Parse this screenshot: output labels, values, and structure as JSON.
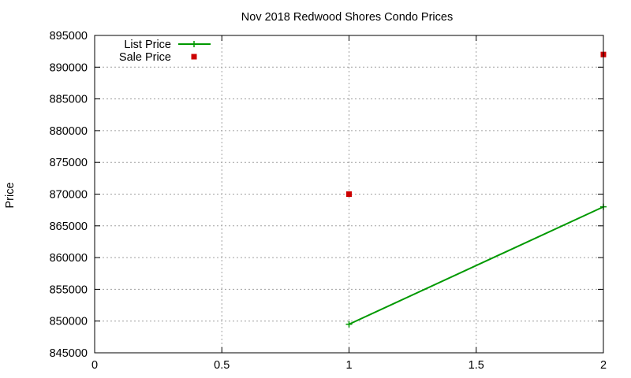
{
  "chart_data": {
    "type": "line",
    "title": "Nov 2018 Redwood Shores Condo Prices",
    "xlabel": "",
    "ylabel": "Price",
    "xlim": [
      0,
      2
    ],
    "ylim": [
      845000,
      895000
    ],
    "xticks": [
      0,
      0.5,
      1,
      1.5,
      2
    ],
    "xtick_labels": [
      "0",
      "0.5",
      "1",
      "1.5",
      "2"
    ],
    "yticks": [
      845000,
      850000,
      855000,
      860000,
      865000,
      870000,
      875000,
      880000,
      885000,
      890000,
      895000
    ],
    "ytick_labels": [
      "845000",
      "850000",
      "855000",
      "860000",
      "865000",
      "870000",
      "875000",
      "880000",
      "885000",
      "890000",
      "895000"
    ],
    "grid": true,
    "legend_position": "top-left",
    "series": [
      {
        "name": "List Price",
        "style": "line-plus",
        "color": "#009900",
        "x": [
          1,
          2
        ],
        "y": [
          849500,
          868000
        ]
      },
      {
        "name": "Sale Price",
        "style": "square",
        "color": "#cc0000",
        "x": [
          1,
          2
        ],
        "y": [
          870000,
          892000
        ]
      }
    ]
  }
}
